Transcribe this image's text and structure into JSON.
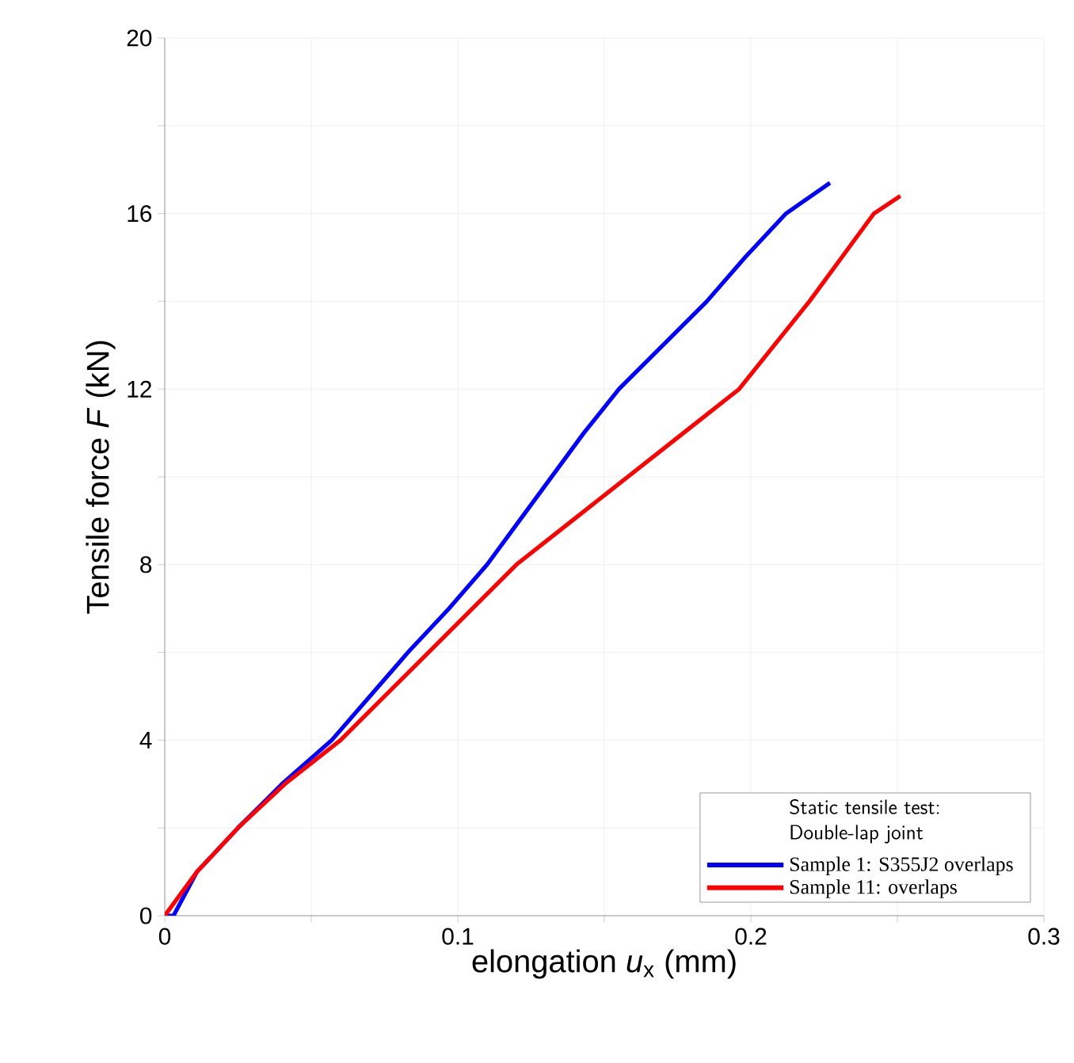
{
  "chart_data": {
    "type": "line",
    "xlabel": "elongation *u*$_{x}$ (mm)",
    "ylabel": "Tensile force *F* (kN)",
    "legend_title": "Static tensile test: Double-lap joint",
    "xlim": [
      0,
      0.3
    ],
    "ylim": [
      0,
      20
    ],
    "xticks": [
      0,
      {
        "value": 0.05,
        "label": null
      },
      0.1,
      {
        "value": 0.15,
        "label": null
      },
      0.2,
      {
        "value": 0.25,
        "label": null
      },
      0.3
    ],
    "yticks": [
      0,
      {
        "value": 2,
        "label": null
      },
      4,
      {
        "value": 6,
        "label": null
      },
      8,
      {
        "value": 10,
        "label": null
      },
      12,
      {
        "value": 14,
        "label": null
      },
      16,
      {
        "value": 18,
        "label": null
      },
      20
    ],
    "grid": true,
    "legend": "bottom right",
    "marker": "none",
    "line_style": "solid",
    "series": [
      {
        "name": "Sample 1: S355J2 overlaps",
        "color": "#0000ff",
        "x": [
          0,
          0.003,
          0.011,
          0.025,
          0.04,
          0.057,
          0.07,
          0.083,
          0.097,
          0.11,
          0.121,
          0.132,
          0.143,
          0.155,
          0.17,
          0.185,
          0.198,
          0.212,
          0.227
        ],
        "values": [
          0,
          0,
          1,
          2,
          3,
          4,
          5,
          6,
          7,
          8,
          9,
          10,
          11,
          12,
          13,
          14,
          15,
          16,
          16.7
        ]
      },
      {
        "name": "Sample 11: overlaps",
        "color": "#ff0000",
        "x": [
          0,
          0.011,
          0.025,
          0.041,
          0.06,
          0.075,
          0.09,
          0.105,
          0.12,
          0.139,
          0.158,
          0.177,
          0.196,
          0.208,
          0.22,
          0.231,
          0.242,
          0.251
        ],
        "values": [
          0,
          1,
          2,
          3,
          4,
          5,
          6,
          7,
          8,
          9,
          10,
          11,
          12,
          13,
          14,
          15,
          16,
          16.4
        ]
      }
    ]
  }
}
